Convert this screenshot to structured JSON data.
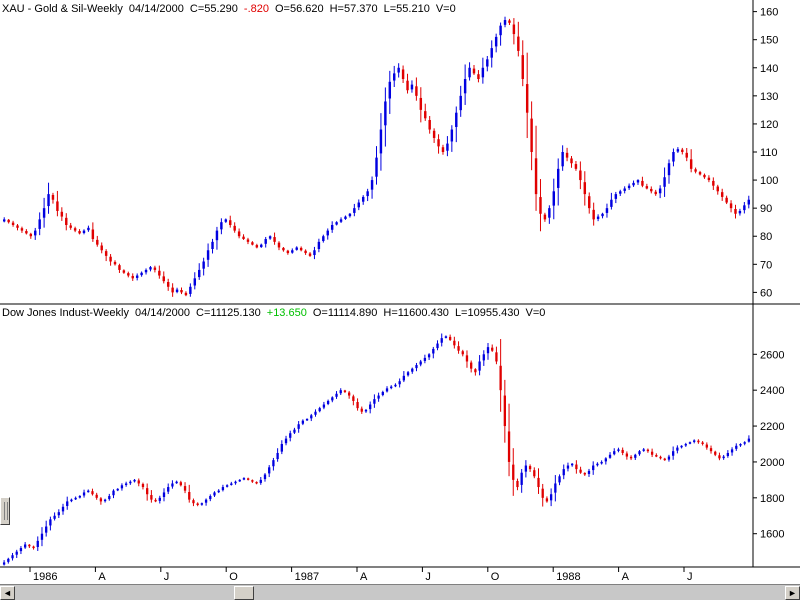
{
  "colors": {
    "up": "#0000e0",
    "down": "#e00000",
    "change_up": "#00c000",
    "change_down": "#e00000"
  },
  "top_panel": {
    "title": "XAU - Gold & Sil-Weekly",
    "date": "04/14/2000",
    "close": "C=55.290",
    "change": "-.820",
    "open": "O=56.620",
    "high": "H=57.370",
    "low": "L=55.210",
    "volume": "V=0"
  },
  "bottom_panel": {
    "title": "Dow Jones Indust-Weekly",
    "date": "04/14/2000",
    "close": "C=11125.130",
    "change": "+13.650",
    "open": "O=11114.890",
    "high": "H=11600.430",
    "low": "L=10955.430",
    "volume": "V=0"
  },
  "time_axis": [
    "1986",
    "A",
    "J",
    "O",
    "1987",
    "A",
    "J",
    "O",
    "1988",
    "A",
    "J"
  ],
  "scrollbar": {
    "left_arrow": "◄",
    "right_arrow": "►"
  },
  "chart_data": [
    {
      "type": "candlestick",
      "title": "XAU - Gold & Sil-Weekly",
      "ylim": [
        58,
        162
      ],
      "y_ticks": [
        60,
        70,
        80,
        90,
        100,
        110,
        120,
        130,
        140,
        150,
        160
      ],
      "x_ticks": [
        "1986",
        "A",
        "J",
        "O",
        "1987",
        "A",
        "J",
        "O",
        "1988",
        "A",
        "J"
      ],
      "closes": [
        86,
        85,
        84,
        83,
        82,
        81,
        80,
        82,
        86,
        90,
        95,
        93,
        89,
        87,
        84,
        83,
        82,
        81,
        82,
        83,
        79,
        77,
        75,
        73,
        71,
        70,
        68,
        67,
        66,
        65,
        66,
        67,
        68,
        69,
        68,
        66,
        64,
        62,
        60,
        61,
        60,
        59,
        62,
        65,
        68,
        71,
        75,
        78,
        82,
        85,
        86,
        84,
        82,
        80,
        79,
        78,
        77,
        76,
        77,
        79,
        80,
        78,
        76,
        75,
        74,
        75,
        76,
        75,
        74,
        73,
        75,
        78,
        80,
        82,
        84,
        85,
        86,
        87,
        88,
        90,
        92,
        94,
        96,
        100,
        108,
        118,
        128,
        135,
        138,
        140,
        136,
        132,
        134,
        130,
        125,
        122,
        118,
        115,
        112,
        110,
        113,
        118,
        124,
        130,
        136,
        140,
        138,
        136,
        140,
        143,
        147,
        151,
        155,
        157,
        156,
        152,
        146,
        136,
        124,
        110,
        95,
        88,
        86,
        90,
        96,
        104,
        110,
        108,
        106,
        104,
        100,
        95,
        90,
        86,
        87,
        88,
        90,
        93,
        95,
        96,
        97,
        98,
        99,
        100,
        98,
        97,
        96,
        95,
        97,
        101,
        106,
        110,
        111,
        110,
        108,
        104,
        103,
        102,
        101,
        100,
        98,
        96,
        94,
        92,
        90,
        88,
        89,
        91,
        93
      ]
    },
    {
      "type": "candlestick",
      "title": "Dow Jones Indust-Weekly",
      "ylim": [
        1420,
        2780
      ],
      "y_ticks": [
        1600,
        1800,
        2000,
        2200,
        2400,
        2600
      ],
      "x_ticks": [
        "1986",
        "A",
        "J",
        "O",
        "1987",
        "A",
        "J",
        "O",
        "1988",
        "A",
        "J"
      ],
      "closes": [
        1440,
        1460,
        1480,
        1500,
        1520,
        1540,
        1530,
        1520,
        1560,
        1600,
        1640,
        1680,
        1700,
        1720,
        1750,
        1780,
        1790,
        1800,
        1810,
        1830,
        1840,
        1820,
        1800,
        1780,
        1790,
        1810,
        1840,
        1850,
        1870,
        1880,
        1890,
        1900,
        1880,
        1860,
        1820,
        1790,
        1780,
        1800,
        1830,
        1860,
        1880,
        1890,
        1870,
        1840,
        1790,
        1770,
        1760,
        1770,
        1790,
        1810,
        1830,
        1840,
        1860,
        1870,
        1880,
        1890,
        1900,
        1910,
        1900,
        1890,
        1880,
        1900,
        1930,
        1970,
        2010,
        2050,
        2100,
        2130,
        2160,
        2180,
        2210,
        2230,
        2240,
        2260,
        2280,
        2300,
        2320,
        2340,
        2360,
        2380,
        2400,
        2390,
        2370,
        2340,
        2300,
        2280,
        2290,
        2320,
        2350,
        2370,
        2390,
        2410,
        2420,
        2430,
        2450,
        2480,
        2500,
        2520,
        2540,
        2560,
        2580,
        2600,
        2630,
        2660,
        2690,
        2700,
        2680,
        2650,
        2620,
        2600,
        2560,
        2520,
        2500,
        2560,
        2600,
        2640,
        2620,
        2560,
        2400,
        2200,
        2000,
        1900,
        1860,
        1940,
        1980,
        1960,
        1920,
        1860,
        1800,
        1780,
        1820,
        1880,
        1920,
        1960,
        1980,
        1990,
        1960,
        1940,
        1930,
        1950,
        1980,
        1990,
        2000,
        2020,
        2040,
        2060,
        2070,
        2050,
        2030,
        2020,
        2040,
        2060,
        2070,
        2060,
        2040,
        2030,
        2020,
        2010,
        2030,
        2060,
        2080,
        2090,
        2100,
        2110,
        2120,
        2110,
        2100,
        2080,
        2060,
        2040,
        2020,
        2030,
        2050,
        2070,
        2090,
        2100,
        2110,
        2130
      ]
    }
  ]
}
